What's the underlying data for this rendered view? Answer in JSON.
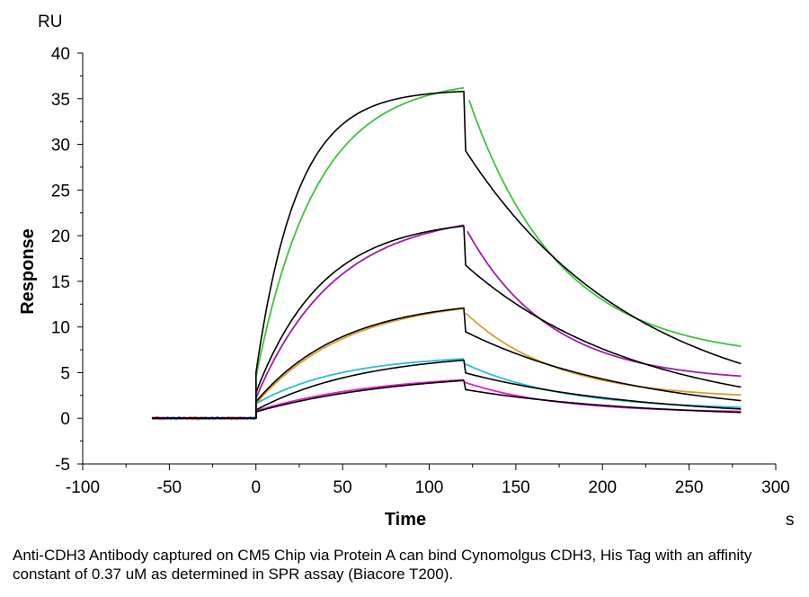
{
  "chart_data": {
    "type": "line",
    "title": "",
    "xlabel": "Time",
    "ylabel": "Response",
    "x_unit": "s",
    "y_unit": "RU",
    "xlim": [
      -100,
      300
    ],
    "ylim": [
      -5,
      40
    ],
    "xticks": [
      -100,
      -50,
      0,
      50,
      100,
      150,
      200,
      250,
      300
    ],
    "yticks": [
      -5,
      0,
      5,
      10,
      15,
      20,
      25,
      30,
      35,
      40
    ],
    "grid": false,
    "legend": "none",
    "series": [
      {
        "color": "#3cc43c",
        "style": "measured",
        "Rmax": 37.2,
        "ka": 0.029,
        "kd": 0.012,
        "plateau": 6.5,
        "jump": 4.5,
        "start": 123
      },
      {
        "color": "#9b1fa3",
        "style": "measured",
        "Rmax": 22.6,
        "ka": 0.022,
        "kd": 0.013,
        "plateau": 4.0,
        "jump": 2.2,
        "start": 122
      },
      {
        "color": "#d4a028",
        "style": "measured",
        "Rmax": 13.2,
        "ka": 0.019,
        "kd": 0.012,
        "plateau": 2.1,
        "jump": 1.6,
        "start": 121
      },
      {
        "color": "#2bbfcf",
        "style": "measured",
        "Rmax": 7.0,
        "ka": 0.02,
        "kd": 0.011,
        "plateau": 0.9,
        "jump": 1.6,
        "start": 120
      },
      {
        "color": "#e020d0",
        "style": "measured",
        "Rmax": 5.0,
        "ka": 0.014,
        "kd": 0.012,
        "plateau": 0.6,
        "jump": 0.8,
        "start": 120
      },
      {
        "color": "#000000",
        "style": "fit",
        "Rmax": 36.0,
        "ka": 0.042,
        "kd": 0.01,
        "plateau": 0.0,
        "jump": 5.0,
        "drop": 6.5
      },
      {
        "color": "#000000",
        "style": "fit",
        "Rmax": 21.9,
        "ka": 0.026,
        "kd": 0.01,
        "plateau": 0.0,
        "jump": 2.8,
        "drop": 4.3
      },
      {
        "color": "#000000",
        "style": "fit",
        "Rmax": 13.1,
        "ka": 0.02,
        "kd": 0.01,
        "plateau": 0.0,
        "jump": 1.8,
        "drop": 2.6
      },
      {
        "color": "#000000",
        "style": "fit",
        "Rmax": 7.3,
        "ka": 0.016,
        "kd": 0.01,
        "plateau": 0.0,
        "jump": 0.9,
        "drop": 1.4
      },
      {
        "color": "#000000",
        "style": "fit",
        "Rmax": 5.2,
        "ka": 0.012,
        "kd": 0.01,
        "plateau": 0.0,
        "jump": 0.7,
        "drop": 1.0
      }
    ],
    "timing": {
      "baseline_start": -60,
      "association_start": 0,
      "association_end": 120,
      "end": 280
    }
  },
  "caption": "Anti-CDH3 Antibody captured on CM5 Chip via Protein A can bind Cynomolgus CDH3, His Tag with an affinity constant of 0.37 uM as determined in SPR assay (Biacore T200)."
}
